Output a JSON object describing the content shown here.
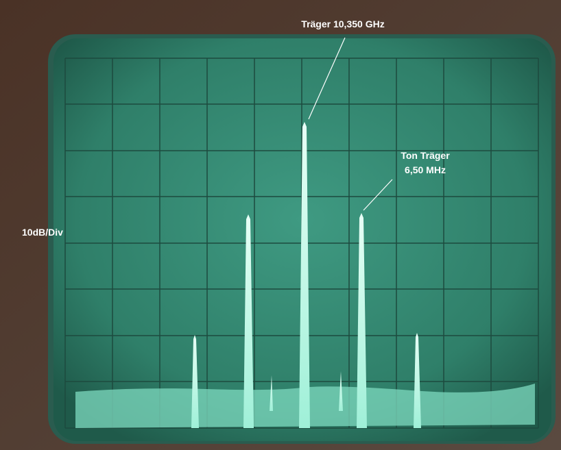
{
  "annotations": {
    "carrier": "Träger 10,350 GHz",
    "tone_carrier": [
      "Ton Träger",
      "6,50 MHz"
    ],
    "scale": "10dB/Div"
  }
}
